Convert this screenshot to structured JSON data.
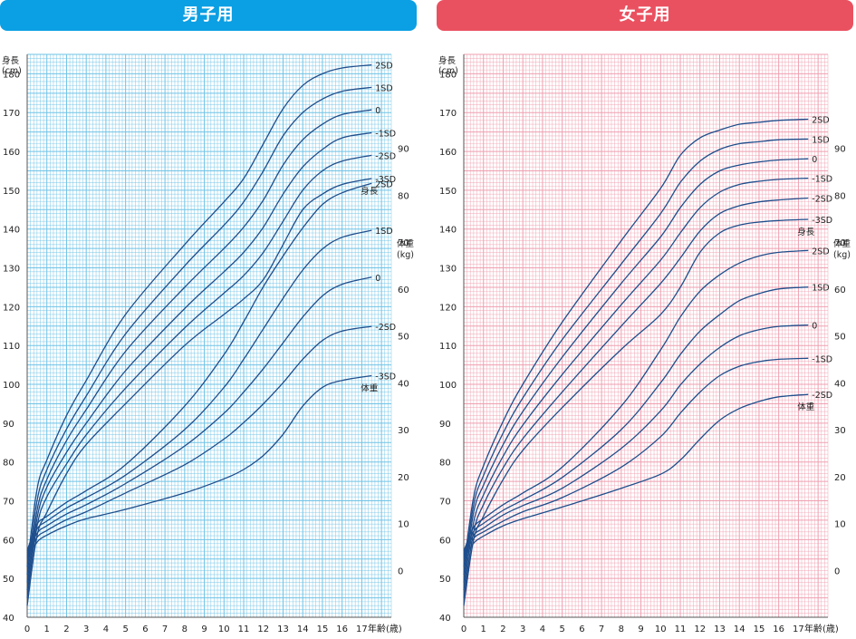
{
  "colors": {
    "boys_banner": "#0b9fe3",
    "girls_banner": "#ea5160",
    "boys_grid": "#6fc3e6",
    "girls_grid": "#ef9fb0",
    "curve": "#1f4e8c"
  },
  "chart_data": [
    {
      "type": "line",
      "title": "男子用",
      "height_axis_label": [
        "身長",
        "(cm)"
      ],
      "weight_axis_label": [
        "体重",
        "(kg)"
      ],
      "xlabel": "年齢(歳)",
      "height_series_label": "身長",
      "weight_series_label": "体重",
      "x_ticks": [
        "0",
        "1",
        "2",
        "3",
        "4",
        "5",
        "6",
        "7",
        "8",
        "9",
        "10",
        "11",
        "12",
        "13",
        "14",
        "15",
        "16",
        "17"
      ],
      "xlim": [
        0,
        18.5
      ],
      "height_ylim": [
        40,
        185
      ],
      "height_ticks": [
        "40",
        "50",
        "60",
        "70",
        "80",
        "90",
        "100",
        "110",
        "120",
        "130",
        "140",
        "150",
        "160",
        "170",
        "180"
      ],
      "weight_ylim": [
        -10,
        110
      ],
      "weight_ticks": [
        "0",
        "10",
        "20",
        "30",
        "40",
        "50",
        "60",
        "70",
        "80",
        "90"
      ],
      "height_series": [
        {
          "name": "2SD",
          "x": [
            0,
            0.5,
            1,
            2,
            3,
            5,
            8,
            10,
            11,
            12,
            13,
            14,
            15,
            16,
            17.5
          ],
          "values": [
            53,
            73,
            80.5,
            92,
            101,
            118,
            136,
            147,
            153,
            162,
            171,
            177,
            180,
            181.5,
            182.3
          ]
        },
        {
          "name": "1SD",
          "x": [
            0,
            0.5,
            1,
            2,
            3,
            5,
            8,
            10,
            11,
            12,
            13,
            14,
            15,
            16,
            17.5
          ],
          "values": [
            51,
            70,
            78,
            88.5,
            97,
            113,
            130.5,
            141,
            147,
            155,
            164,
            170,
            173.5,
            175.5,
            176.5
          ]
        },
        {
          "name": "0",
          "x": [
            0,
            0.5,
            1,
            2,
            3,
            5,
            8,
            10,
            11,
            12,
            13,
            14,
            15,
            16,
            17.5
          ],
          "values": [
            49,
            67.5,
            75.5,
            85.5,
            93.5,
            108.5,
            125,
            135,
            140.5,
            147.5,
            156.5,
            163,
            167,
            169.5,
            170.7
          ]
        },
        {
          "name": "-1SD",
          "x": [
            0,
            0.5,
            1,
            2,
            3,
            5,
            8,
            10,
            11,
            12,
            13,
            14,
            15,
            16,
            17.5
          ],
          "values": [
            47,
            65.5,
            73.5,
            82.5,
            90,
            103.5,
            119.5,
            129,
            134,
            140.5,
            149,
            156,
            160.5,
            163.5,
            164.8
          ]
        },
        {
          "name": "-2SD",
          "x": [
            0,
            0.5,
            1,
            2,
            3,
            5,
            8,
            10,
            11,
            12,
            13,
            14,
            15,
            16,
            17.5
          ],
          "values": [
            45,
            63.5,
            71,
            79.5,
            87,
            99,
            114.5,
            123.5,
            128,
            134,
            142,
            150,
            155,
            157.5,
            159
          ]
        },
        {
          "name": "-3SD",
          "x": [
            0,
            0.5,
            1,
            2,
            3,
            5,
            8,
            10,
            11,
            12,
            13,
            14,
            15,
            16,
            17.5
          ],
          "values": [
            43,
            61,
            67,
            77,
            84.5,
            95,
            110,
            118,
            122,
            127,
            136,
            145,
            149,
            151.5,
            153
          ]
        }
      ],
      "weight_series": [
        {
          "name": "2SD",
          "x": [
            0,
            0.5,
            1,
            2,
            3,
            5,
            8,
            10,
            11,
            12,
            13,
            14,
            15,
            16,
            17.5
          ],
          "values": [
            4.2,
            9.8,
            11.5,
            14.5,
            17,
            22.5,
            35,
            46,
            53,
            60.5,
            67,
            73,
            78,
            80.5,
            82.5
          ]
        },
        {
          "name": "1SD",
          "x": [
            0,
            0.5,
            1,
            2,
            3,
            5,
            8,
            10,
            11,
            12,
            13,
            14,
            15,
            16,
            17.5
          ],
          "values": [
            3.7,
            8.8,
            10.5,
            13.3,
            15.5,
            20.3,
            30,
            39,
            45,
            51.5,
            58,
            64,
            68.5,
            71,
            72.5
          ]
        },
        {
          "name": "0",
          "x": [
            0,
            0.5,
            1,
            2,
            3,
            5,
            8,
            10,
            11,
            12,
            13,
            14,
            15,
            16,
            17.5
          ],
          "values": [
            3.2,
            7.9,
            9.5,
            12,
            14,
            18.5,
            26.5,
            33.5,
            38,
            43,
            48.5,
            54,
            58.5,
            61,
            62.5
          ]
        },
        {
          "name": "-2SD",
          "x": [
            0,
            0.5,
            1,
            2,
            3,
            5,
            8,
            10,
            11,
            12,
            13,
            14,
            15,
            16,
            17.5
          ],
          "values": [
            2.8,
            7,
            8.5,
            10.8,
            12.5,
            16.5,
            22.5,
            28,
            31.5,
            35.5,
            40,
            45,
            49,
            51,
            52
          ]
        },
        {
          "name": "-3SD",
          "x": [
            0,
            0.5,
            1,
            2,
            3,
            5,
            8,
            10,
            11,
            12,
            13,
            14,
            15,
            16,
            17.5
          ],
          "values": [
            2.4,
            6,
            7.5,
            9.5,
            11,
            13,
            16.5,
            19.5,
            21.5,
            24.5,
            29,
            35,
            39,
            40.5,
            41.5
          ]
        }
      ]
    },
    {
      "type": "line",
      "title": "女子用",
      "height_axis_label": [
        "身長",
        "(cm)"
      ],
      "weight_axis_label": [
        "体重",
        "(kg)"
      ],
      "xlabel": "年齢(歳)",
      "height_series_label": "身長",
      "weight_series_label": "体重",
      "x_ticks": [
        "0",
        "1",
        "2",
        "3",
        "4",
        "5",
        "6",
        "7",
        "8",
        "9",
        "10",
        "11",
        "12",
        "13",
        "14",
        "15",
        "16",
        "17"
      ],
      "xlim": [
        0,
        18.5
      ],
      "height_ylim": [
        40,
        185
      ],
      "height_ticks": [
        "40",
        "50",
        "60",
        "70",
        "80",
        "90",
        "100",
        "110",
        "120",
        "130",
        "140",
        "150",
        "160",
        "170",
        "180"
      ],
      "weight_ylim": [
        -10,
        110
      ],
      "weight_ticks": [
        "0",
        "10",
        "20",
        "30",
        "40",
        "50",
        "60",
        "70",
        "80",
        "90"
      ],
      "height_series": [
        {
          "name": "2SD",
          "x": [
            0,
            0.5,
            1,
            2,
            3,
            5,
            8,
            10,
            11,
            12,
            13,
            14,
            15,
            16,
            17.5
          ],
          "values": [
            53,
            71,
            79,
            90.5,
            100,
            116,
            137,
            150.5,
            159,
            163.5,
            165.5,
            167,
            167.5,
            168,
            168.3
          ]
        },
        {
          "name": "1SD",
          "x": [
            0,
            0.5,
            1,
            2,
            3,
            5,
            8,
            10,
            11,
            12,
            13,
            14,
            15,
            16,
            17.5
          ],
          "values": [
            51,
            69,
            76.5,
            87.5,
            96.5,
            111.5,
            131,
            144,
            152,
            157.5,
            160.5,
            162,
            162.5,
            163,
            163.2
          ]
        },
        {
          "name": "0",
          "x": [
            0,
            0.5,
            1,
            2,
            3,
            5,
            8,
            10,
            11,
            12,
            13,
            14,
            15,
            16,
            17.5
          ],
          "values": [
            49,
            67,
            74,
            84.5,
            93,
            107,
            126,
            138,
            145.5,
            151.5,
            155,
            156.5,
            157.3,
            157.8,
            158.1
          ]
        },
        {
          "name": "-1SD",
          "x": [
            0,
            0.5,
            1,
            2,
            3,
            5,
            8,
            10,
            11,
            12,
            13,
            14,
            15,
            16,
            17.5
          ],
          "values": [
            47,
            64.5,
            71.5,
            81.5,
            89.5,
            102.5,
            120.5,
            132,
            139,
            145.5,
            149.5,
            151.5,
            152.3,
            152.8,
            153.1
          ]
        },
        {
          "name": "-2SD",
          "x": [
            0,
            0.5,
            1,
            2,
            3,
            5,
            8,
            10,
            11,
            12,
            13,
            14,
            15,
            16,
            17.5
          ],
          "values": [
            45,
            62,
            69,
            78.5,
            86,
            98,
            115,
            126,
            132.5,
            139.5,
            144,
            146,
            147,
            147.5,
            148
          ]
        },
        {
          "name": "-3SD",
          "x": [
            0,
            0.5,
            1,
            2,
            3,
            5,
            8,
            10,
            11,
            12,
            13,
            14,
            15,
            16,
            17.5
          ],
          "values": [
            43,
            60,
            66,
            75.5,
            83,
            94,
            109,
            118,
            125,
            134,
            139,
            141,
            141.8,
            142.2,
            142.5
          ]
        }
      ],
      "weight_series": [
        {
          "name": "2SD",
          "x": [
            0,
            0.5,
            1,
            2,
            3,
            5,
            8,
            10,
            11,
            12,
            13,
            14,
            15,
            16,
            17.5
          ],
          "values": [
            4.1,
            9.2,
            11,
            14,
            16.5,
            22,
            35,
            47,
            54,
            59.5,
            63,
            65.5,
            67,
            67.8,
            68.2
          ]
        },
        {
          "name": "1SD",
          "x": [
            0,
            0.5,
            1,
            2,
            3,
            5,
            8,
            10,
            11,
            12,
            13,
            14,
            15,
            16,
            17.5
          ],
          "values": [
            3.6,
            8.3,
            10,
            12.8,
            15,
            19.8,
            30,
            40,
            46,
            51,
            54.5,
            57.5,
            59,
            60,
            60.4
          ]
        },
        {
          "name": "0",
          "x": [
            0,
            0.5,
            1,
            2,
            3,
            5,
            8,
            10,
            11,
            12,
            13,
            14,
            15,
            16,
            17.5
          ],
          "values": [
            3.2,
            7.5,
            9,
            11.8,
            13.8,
            17.5,
            26,
            34,
            39.5,
            44,
            47.5,
            50,
            51.3,
            52,
            52.3
          ]
        },
        {
          "name": "-1SD",
          "x": [
            0,
            0.5,
            1,
            2,
            3,
            5,
            8,
            10,
            11,
            12,
            13,
            14,
            15,
            16,
            17.5
          ],
          "values": [
            2.8,
            6.8,
            8.2,
            10.5,
            12.5,
            15.5,
            22,
            28.5,
            33.5,
            38,
            41.5,
            43.5,
            44.5,
            45,
            45.2
          ]
        },
        {
          "name": "-2SD",
          "x": [
            0,
            0.5,
            1,
            2,
            3,
            5,
            8,
            10,
            11,
            12,
            13,
            14,
            15,
            16,
            17.5
          ],
          "values": [
            2.4,
            5.8,
            7.3,
            9.5,
            11,
            13.5,
            17.5,
            20.5,
            23.5,
            28,
            32,
            34.5,
            36,
            37,
            37.5
          ]
        }
      ]
    }
  ]
}
